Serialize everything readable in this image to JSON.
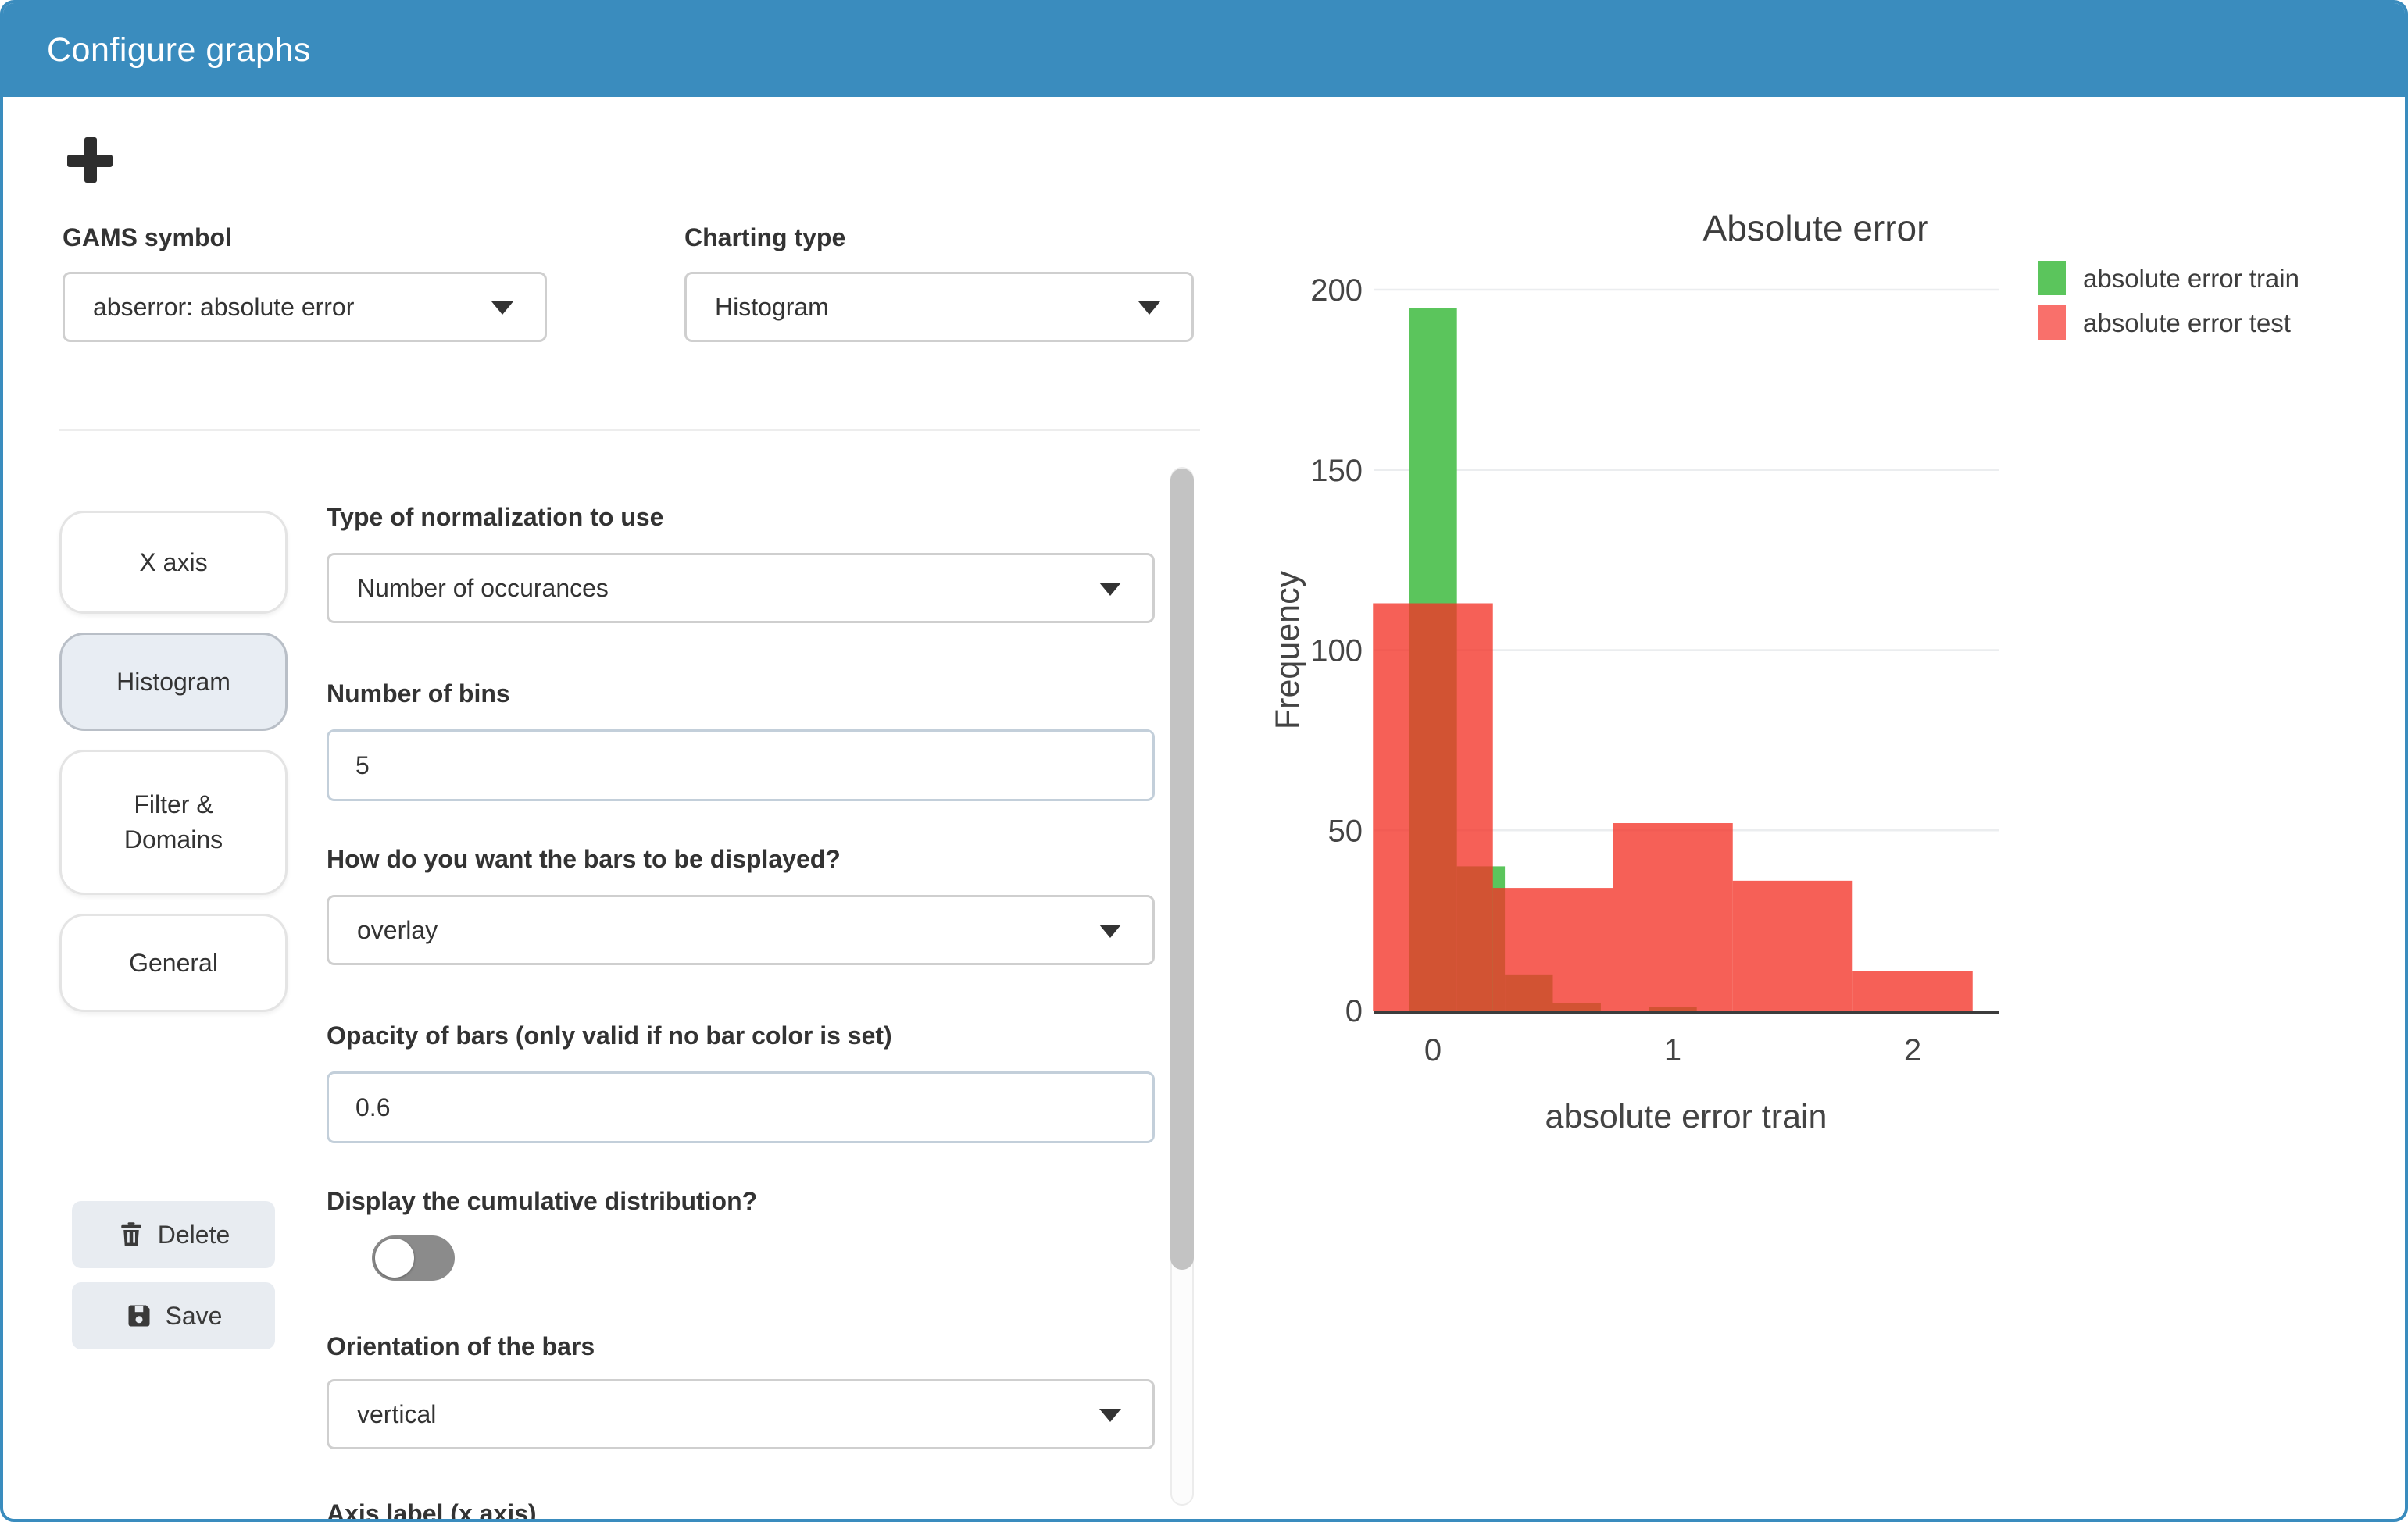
{
  "header": {
    "title": "Configure graphs"
  },
  "toolbar": {
    "add_tooltip": "add graph"
  },
  "symbol_row": {
    "gams_label": "GAMS symbol",
    "gams_value": "abserror: absolute error",
    "charting_label": "Charting type",
    "charting_value": "Histogram"
  },
  "sidebar": {
    "items": [
      {
        "label": "X axis",
        "active": false
      },
      {
        "label": "Histogram",
        "active": true
      },
      {
        "label": "Filter & Domains",
        "active": false
      },
      {
        "label": "General",
        "active": false
      }
    ]
  },
  "form": {
    "normalization": {
      "label": "Type of normalization to use",
      "value": "Number of occurances"
    },
    "bins": {
      "label": "Number of bins",
      "value": "5"
    },
    "barmode": {
      "label": "How do you want the bars to be displayed?",
      "value": "overlay"
    },
    "opacity": {
      "label": "Opacity of bars (only valid if no bar color is set)",
      "value": "0.6"
    },
    "cumulative": {
      "label": "Display the cumulative distribution?",
      "state": "off"
    },
    "orientation": {
      "label": "Orientation of the bars",
      "value": "vertical"
    },
    "axis_label_x": {
      "label": "Axis label (x axis)"
    }
  },
  "actions": {
    "delete_label": "Delete",
    "save_label": "Save"
  },
  "colors": {
    "accent": "#3a8cbe",
    "train_green": "#5bc55c",
    "test_red_legend": "#f9706b",
    "test_red_fill": "#f43328",
    "overlap_brown": "#c04c29",
    "grid": "#ebedef",
    "axis_text": "#444444"
  },
  "chart_data": {
    "type": "histogram",
    "barmode": "overlay",
    "title": "Absolute error",
    "xlabel": "absolute error train",
    "ylabel": "Frequency",
    "x_ticks": [
      0,
      1,
      2
    ],
    "y_ticks": [
      0,
      50,
      100,
      150,
      200
    ],
    "x_range": [
      -0.35,
      2.35
    ],
    "y_range": [
      0,
      205
    ],
    "grid": true,
    "legend_position": "top-right",
    "series": [
      {
        "name": "absolute error train",
        "legend_color": "#5bc55c",
        "fill": "#5bc55c",
        "fill_opacity": 1,
        "bin_start": -0.1,
        "bin_width": 0.2,
        "counts": [
          195,
          40,
          10,
          2,
          0,
          1
        ]
      },
      {
        "name": "absolute error test",
        "legend_color": "#f9706b",
        "fill": "#f43328",
        "fill_opacity": 0.78,
        "bin_start": -0.25,
        "bin_width": 0.5,
        "counts": [
          113,
          34,
          52,
          36,
          11
        ]
      }
    ]
  }
}
